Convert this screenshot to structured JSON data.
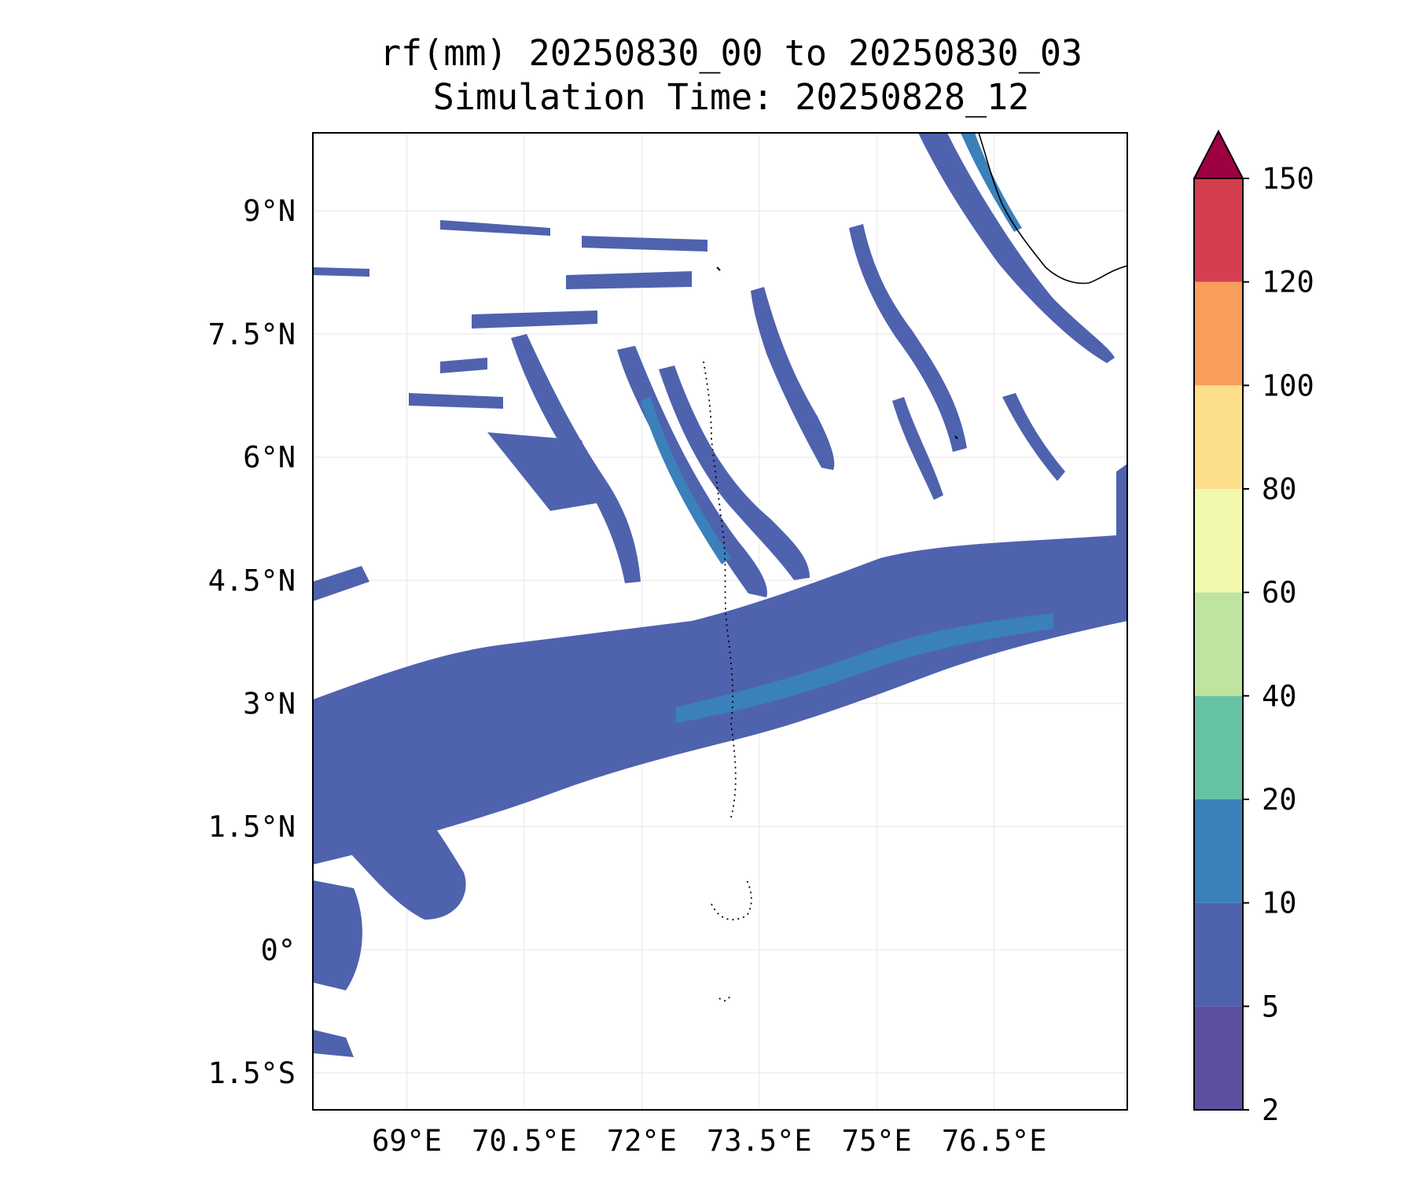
{
  "title": {
    "line1": "rf(mm) 20250830_00 to 20250830_03",
    "line2": "Simulation Time: 20250828_12"
  },
  "map": {
    "lon_range": [
      67.8,
      78.2
    ],
    "lat_range": [
      -1.95,
      9.95
    ],
    "lon_ticks": [
      "69°E",
      "70.5°E",
      "72°E",
      "73.5°E",
      "75°E",
      "76.5°E"
    ],
    "lat_ticks": [
      "9°N",
      "7.5°N",
      "6°N",
      "4.5°N",
      "3°N",
      "1.5°N",
      "0°",
      "1.5°S"
    ],
    "gridlines": true
  },
  "colorbar": {
    "levels": [
      "2",
      "5",
      "10",
      "20",
      "40",
      "60",
      "80",
      "100",
      "120",
      "150"
    ],
    "colors": [
      "#5e4fa2",
      "#4f62ae",
      "#3a80bb",
      "#66c2a5",
      "#bfe4a0",
      "#f2f9ac",
      "#fddf8b",
      "#f99e5a",
      "#d53e4f"
    ],
    "extend_color": "#9e0142",
    "extend": "max"
  },
  "colors": {
    "rain_low": "#5e4fa2",
    "rain_mid": "#4f62ae",
    "rain_high": "#3a80bb",
    "coast": "#000000"
  }
}
